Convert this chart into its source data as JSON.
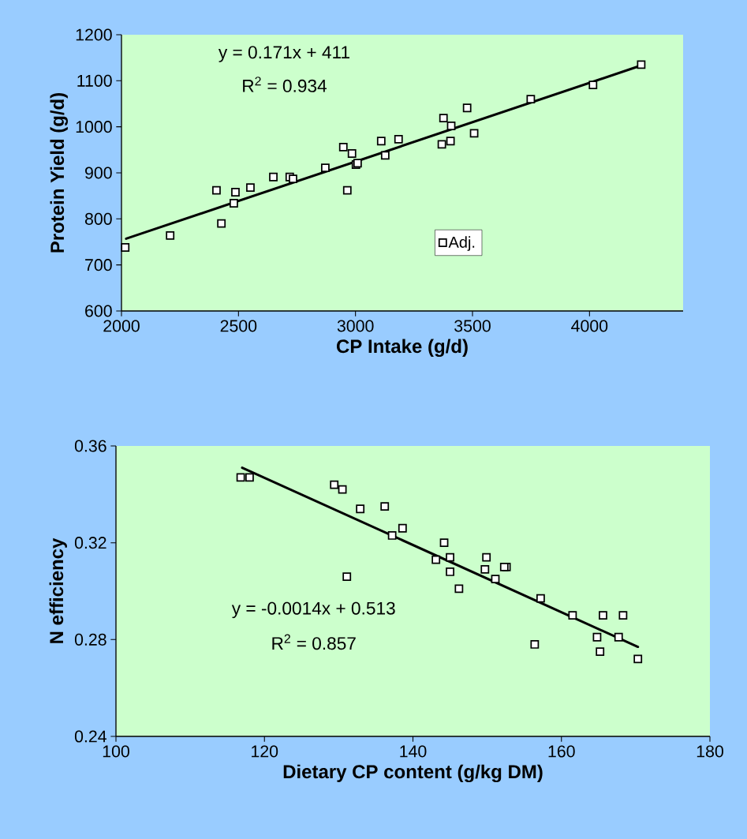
{
  "chart_data": [
    {
      "type": "scatter",
      "xlabel": "CP Intake (g/d)",
      "ylabel": "Protein Yield (g/d)",
      "xlim": [
        2000,
        4400
      ],
      "ylim": [
        600,
        1200
      ],
      "xticks": [
        2000,
        2500,
        3000,
        3500,
        4000
      ],
      "yticks": [
        600,
        700,
        800,
        900,
        1000,
        1100,
        1200
      ],
      "legend": "bottom",
      "annotations": [
        "y = 0.171x + 411",
        "R$^{2}$ = 0.934"
      ],
      "series": [
        {
          "name": "Adj.",
          "color": "#000000",
          "marker": "square",
          "x": [
            2016,
            2208,
            2406,
            2427,
            2480,
            2487,
            2551,
            2649,
            2719,
            2733,
            2871,
            2948,
            2985,
            2965,
            3002,
            3009,
            3110,
            3127,
            3184,
            3369,
            3376,
            3409,
            3406,
            3477,
            3507,
            3749,
            4015,
            4221
          ],
          "values": [
            738,
            764,
            862,
            790,
            834,
            858,
            868,
            891,
            891,
            887,
            911,
            956,
            942,
            862,
            918,
            921,
            969,
            938,
            973,
            962,
            1019,
            1002,
            969,
            1041,
            986,
            1060,
            1091,
            1135
          ]
        },
        {
          "type": "line",
          "color": "#000000",
          "x": [
            2020,
            4220
          ],
          "values": [
            757,
            1133
          ]
        }
      ]
    },
    {
      "type": "scatter",
      "xlabel": "Dietary CP content (g/kg DM)",
      "ylabel": "N efficiency",
      "xlim": [
        100,
        180
      ],
      "ylim": [
        0.24,
        0.36
      ],
      "xticks": [
        100,
        120,
        140,
        160,
        180
      ],
      "yticks": [
        0.24,
        0.28,
        0.32,
        0.36
      ],
      "annotations": [
        "y = -0.0014x + 0.513",
        "R$^{2}$ = 0.857"
      ],
      "series": [
        {
          "color": "#000000",
          "marker": "square",
          "x": [
            116.8,
            118.0,
            129.4,
            130.5,
            132.9,
            136.2,
            138.6,
            137.2,
            131.1,
            144.2,
            143.1,
            145.0,
            145.0,
            146.2,
            149.9,
            149.7,
            151.1,
            152.6,
            152.3,
            157.2,
            156.4,
            161.5,
            165.6,
            168.3,
            164.8,
            167.7,
            165.2,
            170.3
          ],
          "values": [
            0.347,
            0.347,
            0.344,
            0.342,
            0.334,
            0.335,
            0.326,
            0.323,
            0.306,
            0.32,
            0.313,
            0.314,
            0.308,
            0.301,
            0.314,
            0.309,
            0.305,
            0.31,
            0.31,
            0.297,
            0.278,
            0.29,
            0.29,
            0.29,
            0.281,
            0.281,
            0.275,
            0.272
          ]
        },
        {
          "type": "line",
          "color": "#000000",
          "x": [
            117,
            170.3
          ],
          "values": [
            0.351,
            0.277
          ]
        }
      ]
    }
  ]
}
